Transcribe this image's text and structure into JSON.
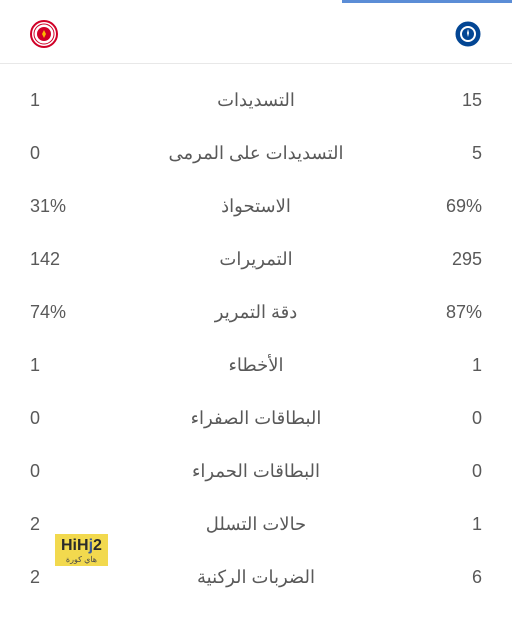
{
  "teams": {
    "home": {
      "name": "chelsea",
      "logo_color_primary": "#034694",
      "logo_color_secondary": "#ffffff"
    },
    "away": {
      "name": "brentford",
      "logo_color_primary": "#d00027",
      "logo_color_secondary": "#ffffff"
    }
  },
  "stats": [
    {
      "label": "التسديدات",
      "home": "15",
      "away": "1"
    },
    {
      "label": "التسديدات على المرمى",
      "home": "5",
      "away": "0"
    },
    {
      "label": "الاستحواذ",
      "home": "69%",
      "away": "31%"
    },
    {
      "label": "التمريرات",
      "home": "295",
      "away": "142"
    },
    {
      "label": "دقة التمرير",
      "home": "87%",
      "away": "74%"
    },
    {
      "label": "الأخطاء",
      "home": "1",
      "away": "1"
    },
    {
      "label": "البطاقات الصفراء",
      "home": "0",
      "away": "0"
    },
    {
      "label": "البطاقات الحمراء",
      "home": "0",
      "away": "0"
    },
    {
      "label": "حالات التسلل",
      "home": "1",
      "away": "2"
    },
    {
      "label": "الضربات الركنية",
      "home": "6",
      "away": "2"
    }
  ],
  "watermark": {
    "main_pre": "HiH",
    "main_j": "j",
    "main_post": "2",
    "sub": "هاي كورة"
  },
  "colors": {
    "tab_indicator": "#5b8dd6",
    "text": "#595959",
    "border": "#e8e8e8",
    "watermark_bg": "#f2d94e",
    "watermark_j": "#3b5998"
  }
}
